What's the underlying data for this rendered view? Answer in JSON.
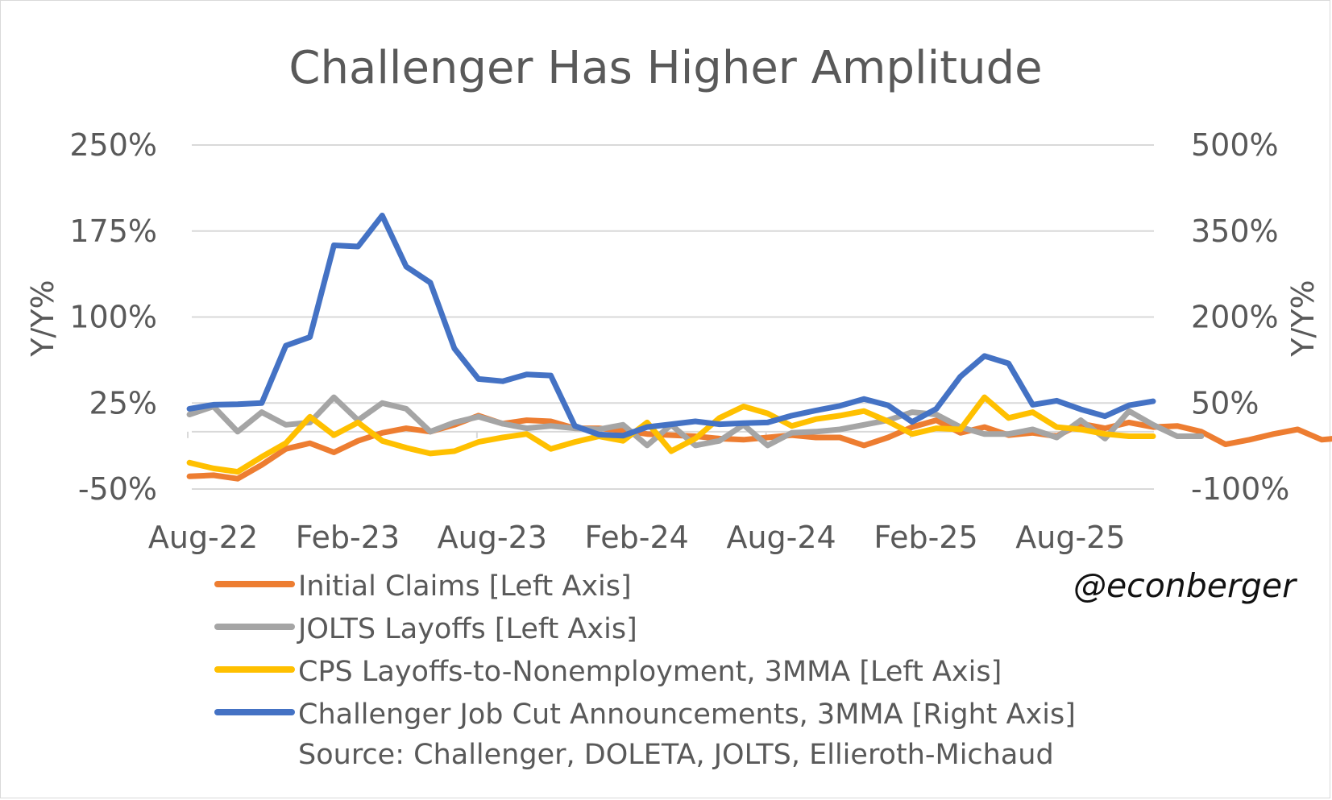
{
  "chart_data": {
    "type": "line",
    "title": "Challenger Has Higher Amplitude",
    "ylabel_left": "Y/Y%",
    "ylabel_right": "Y/Y%",
    "ylim_left": [
      -50,
      250
    ],
    "ylim_right": [
      -100,
      500
    ],
    "left_ticks": [
      "250%",
      "175%",
      "100%",
      "25%",
      "-50%"
    ],
    "right_ticks": [
      "500%",
      "350%",
      "200%",
      "50%",
      "-100%"
    ],
    "x_ticks": [
      "Aug-22",
      "Feb-23",
      "Aug-23",
      "Feb-24",
      "Aug-24",
      "Feb-25",
      "Aug-25"
    ],
    "watermark": "@econberger",
    "source": "Source: Challenger, DOLETA, JOLTS, Ellieroth-Michaud",
    "series": [
      {
        "name": "Initial Claims [Left Axis]",
        "axis": "left",
        "color": "#ED7D31",
        "start_month_index": 0,
        "values": [
          -39,
          -38,
          -41,
          -29,
          -15,
          -10,
          -18,
          -8,
          -1,
          3,
          0,
          6,
          14,
          7,
          10,
          9,
          3,
          3,
          1,
          -2,
          -3,
          -4,
          -6,
          -7,
          -5,
          -3,
          -5,
          -5,
          -12,
          -5,
          4,
          10,
          -1,
          4,
          -3,
          -1,
          -4,
          7,
          3,
          8,
          4,
          5,
          0,
          -11,
          -7,
          -2,
          2,
          -7,
          -5
        ]
      },
      {
        "name": "JOLTS Layoffs [Left Axis]",
        "axis": "left",
        "color": "#A5A5A5",
        "start_month_index": 0,
        "values": [
          15,
          22,
          0,
          17,
          6,
          8,
          30,
          10,
          25,
          20,
          0,
          8,
          13,
          7,
          3,
          5,
          3,
          2,
          6,
          -12,
          6,
          -12,
          -8,
          6,
          -12,
          -1,
          0,
          2,
          6,
          10,
          17,
          15,
          4,
          -2,
          -2,
          2,
          -5,
          10,
          -6,
          18,
          6,
          -4,
          -4
        ]
      },
      {
        "name": "CPS Layoffs-to-Nonemployment, 3MMA [Left Axis]",
        "axis": "left",
        "color": "#FFC000",
        "start_month_index": 0,
        "values": [
          -27,
          -32,
          -35,
          -22,
          -10,
          13,
          -3,
          8,
          -8,
          -14,
          -19,
          -17,
          -9,
          -5,
          -2,
          -15,
          -9,
          -4,
          -8,
          8,
          -17,
          -6,
          12,
          22,
          16,
          5,
          11,
          14,
          18,
          9,
          -2,
          3,
          2,
          30,
          12,
          17,
          4,
          2,
          -2,
          -4,
          -4
        ]
      },
      {
        "name": "Challenger Job Cut Announcements, 3MMA [Right Axis]",
        "axis": "right",
        "color": "#4472C4",
        "start_month_index": 0,
        "values": [
          40,
          47,
          48,
          50,
          150,
          165,
          325,
          323,
          377,
          288,
          260,
          145,
          92,
          88,
          100,
          98,
          10,
          -5,
          -7,
          8,
          13,
          18,
          13,
          15,
          16,
          28,
          37,
          45,
          57,
          46,
          17,
          40,
          96,
          132,
          119,
          47,
          54,
          39,
          27,
          46,
          53
        ]
      }
    ]
  }
}
